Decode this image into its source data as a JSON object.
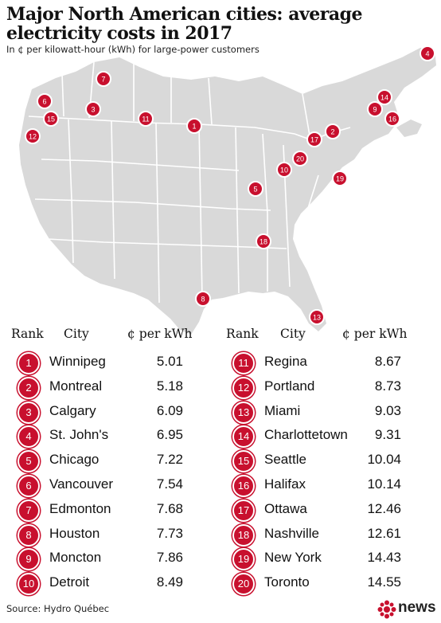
{
  "title": "Major North American cities: average electricity costs in 2017",
  "subtitle": "In ¢ per kilowatt-hour (kWh) for large-power customers",
  "headers": {
    "rank": "Rank",
    "city": "City",
    "value": "¢ per kWh"
  },
  "source": "Source: Hydro Québec",
  "logo_text": "news",
  "colors": {
    "badge": "#c8102e",
    "map_fill": "#d9d9d9",
    "map_lines": "#ffffff"
  },
  "chart_data": {
    "type": "table",
    "title": "Major North American cities: average electricity costs in 2017",
    "subtitle": "In ¢ per kilowatt-hour (kWh) for large-power customers",
    "unit": "¢ per kWh",
    "ranks": [
      1,
      2,
      3,
      4,
      5,
      6,
      7,
      8,
      9,
      10,
      11,
      12,
      13,
      14,
      15,
      16,
      17,
      18,
      19,
      20
    ],
    "cities": [
      "Winnipeg",
      "Montreal",
      "Calgary",
      "St. John's",
      "Chicago",
      "Vancouver",
      "Edmonton",
      "Houston",
      "Moncton",
      "Detroit",
      "Regina",
      "Portland",
      "Miami",
      "Charlottetown",
      "Seattle",
      "Halifax",
      "Ottawa",
      "Nashville",
      "New York",
      "Toronto"
    ],
    "values": [
      5.01,
      5.18,
      6.09,
      6.95,
      7.22,
      7.54,
      7.68,
      7.73,
      7.86,
      8.49,
      8.67,
      8.73,
      9.03,
      9.31,
      10.04,
      10.14,
      12.46,
      12.61,
      14.43,
      14.55
    ]
  }
}
